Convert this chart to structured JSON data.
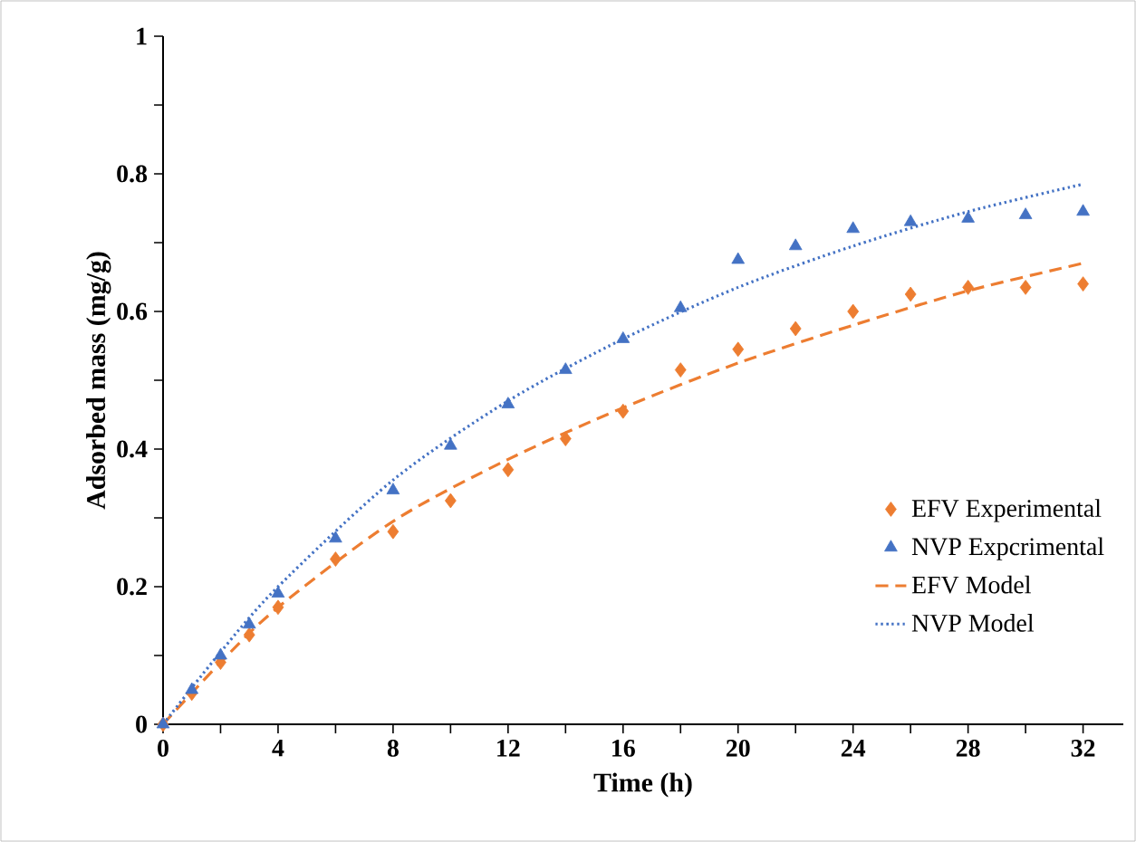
{
  "chart_data": {
    "type": "scatter",
    "xlabel": "Time (h)",
    "ylabel": "Adsorbed mass (mg/g)",
    "xlim": [
      0,
      33.4
    ],
    "ylim": [
      0,
      1
    ],
    "xticks": [
      0,
      4,
      8,
      12,
      16,
      20,
      24,
      28,
      32
    ],
    "yticks": [
      0,
      0.2,
      0.4,
      0.6,
      0.8,
      1
    ],
    "legend": "right",
    "series": [
      {
        "name": "EFV Experimental",
        "type": "scatter",
        "marker": "diamond",
        "color": "#ed7d31",
        "x": [
          0,
          1,
          2,
          3,
          4,
          6,
          8,
          10,
          12,
          14,
          16,
          18,
          20,
          22,
          24,
          26,
          28,
          30,
          32
        ],
        "values": [
          0,
          0.045,
          0.09,
          0.13,
          0.17,
          0.24,
          0.28,
          0.325,
          0.37,
          0.415,
          0.455,
          0.515,
          0.545,
          0.575,
          0.6,
          0.625,
          0.635,
          0.635,
          0.64
        ]
      },
      {
        "name": "NVP Expcrimental",
        "type": "scatter",
        "marker": "triangle",
        "color": "#4472c4",
        "x": [
          0,
          1,
          2,
          3,
          4,
          6,
          8,
          10,
          12,
          14,
          16,
          18,
          20,
          22,
          24,
          26,
          28,
          30,
          32
        ],
        "values": [
          0,
          0.05,
          0.1,
          0.145,
          0.19,
          0.27,
          0.34,
          0.405,
          0.465,
          0.515,
          0.56,
          0.605,
          0.675,
          0.695,
          0.72,
          0.73,
          0.735,
          0.74,
          0.745
        ]
      },
      {
        "name": "EFV Model",
        "type": "line",
        "line_style": "dashed",
        "color": "#ed7d31",
        "x": [
          0,
          2,
          4,
          8,
          12,
          16,
          20,
          24,
          28,
          32
        ],
        "values": [
          0,
          0.09,
          0.17,
          0.295,
          0.385,
          0.46,
          0.525,
          0.58,
          0.63,
          0.67
        ]
      },
      {
        "name": "NVP Model",
        "type": "line",
        "line_style": "dotted",
        "color": "#4472c4",
        "x": [
          0,
          2,
          4,
          8,
          12,
          16,
          20,
          24,
          28,
          32
        ],
        "values": [
          0,
          0.105,
          0.2,
          0.355,
          0.47,
          0.56,
          0.635,
          0.695,
          0.745,
          0.785
        ]
      }
    ]
  }
}
